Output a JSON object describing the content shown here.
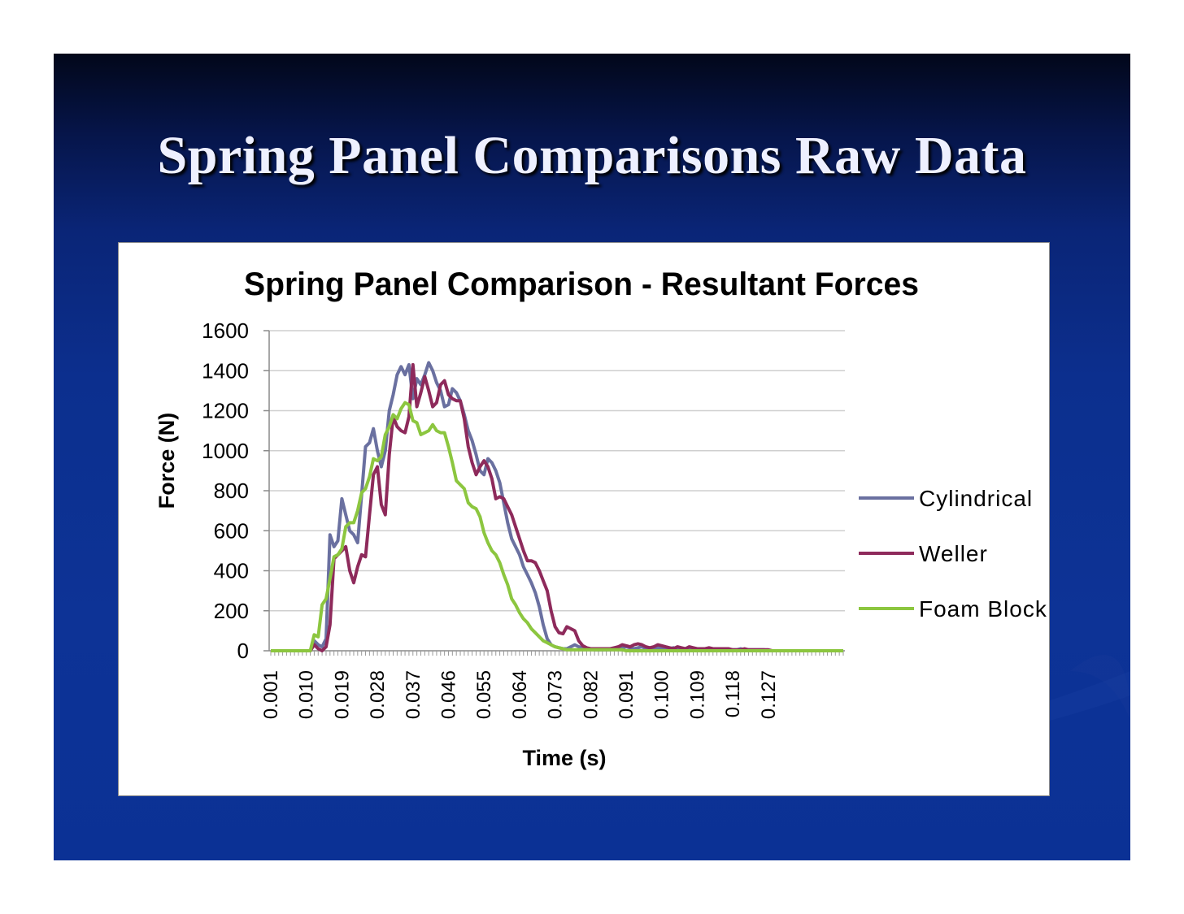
{
  "slide": {
    "title": "Spring Panel Comparisons Raw Data",
    "colors": {
      "background_top": "#02071a",
      "background": "#0c2f8e",
      "title_text": "#eef0ff"
    }
  },
  "chart_data": {
    "type": "line",
    "title": "Spring Panel Comparison - Resultant Forces",
    "xlabel": "Time (s)",
    "ylabel": "Force (N)",
    "ylim": [
      0,
      1600
    ],
    "yticks": [
      "0",
      "200",
      "400",
      "600",
      "800",
      "1000",
      "1200",
      "1400",
      "1600"
    ],
    "xticks": [
      "0.001",
      "0.010",
      "0.019",
      "0.028",
      "0.037",
      "0.046",
      "0.055",
      "0.064",
      "0.073",
      "0.082",
      "0.091",
      "0.100",
      "0.109",
      "0.118",
      "0.127"
    ],
    "x_start": 0.001,
    "x_step": 0.001,
    "grid": "horizontal",
    "legend_position": "right",
    "series": [
      {
        "name": "Cylindrical",
        "color": "#6a70a0",
        "values": [
          0,
          0,
          0,
          0,
          0,
          0,
          0,
          0,
          0,
          0,
          0,
          50,
          30,
          20,
          60,
          580,
          520,
          550,
          760,
          680,
          600,
          580,
          540,
          780,
          1020,
          1040,
          1110,
          1000,
          920,
          1000,
          1200,
          1280,
          1380,
          1420,
          1380,
          1430,
          1260,
          1360,
          1330,
          1380,
          1440,
          1400,
          1340,
          1300,
          1220,
          1230,
          1310,
          1290,
          1250,
          1180,
          1100,
          1050,
          980,
          900,
          880,
          960,
          940,
          900,
          840,
          740,
          640,
          560,
          520,
          480,
          420,
          380,
          340,
          290,
          220,
          130,
          60,
          30,
          20,
          15,
          10,
          10,
          20,
          30,
          20,
          15,
          10,
          10,
          5,
          5,
          5,
          5,
          5,
          10,
          10,
          15,
          20,
          15,
          10,
          15,
          20,
          10,
          10,
          10,
          15,
          10,
          10,
          10,
          15,
          10,
          10,
          10,
          10,
          5,
          5,
          5,
          5,
          5,
          5,
          5,
          5,
          5,
          5,
          5,
          5,
          10,
          5,
          5,
          5,
          5,
          5,
          5,
          0,
          0,
          0,
          0,
          0,
          0,
          0,
          0,
          0,
          0,
          0,
          0,
          0
        ]
      },
      {
        "name": "Weller",
        "color": "#8e2a5b",
        "values": [
          0,
          0,
          0,
          0,
          0,
          0,
          0,
          0,
          0,
          0,
          0,
          30,
          10,
          0,
          20,
          130,
          460,
          480,
          500,
          520,
          400,
          340,
          420,
          480,
          470,
          680,
          880,
          920,
          730,
          680,
          980,
          1170,
          1120,
          1100,
          1090,
          1170,
          1430,
          1220,
          1290,
          1370,
          1300,
          1220,
          1240,
          1330,
          1350,
          1280,
          1260,
          1250,
          1250,
          1160,
          1020,
          940,
          880,
          920,
          950,
          920,
          860,
          760,
          770,
          760,
          720,
          680,
          620,
          560,
          500,
          450,
          450,
          440,
          400,
          350,
          300,
          200,
          120,
          90,
          85,
          120,
          110,
          100,
          50,
          25,
          15,
          10,
          10,
          10,
          10,
          10,
          10,
          15,
          20,
          30,
          25,
          20,
          30,
          35,
          30,
          20,
          15,
          20,
          30,
          25,
          20,
          15,
          10,
          20,
          15,
          10,
          20,
          15,
          10,
          10,
          10,
          15,
          10,
          10,
          10,
          10,
          10,
          5,
          5,
          5,
          10,
          5,
          5,
          5,
          5,
          5,
          5,
          0,
          0,
          0,
          0,
          0,
          0,
          0,
          0,
          0,
          0,
          0,
          0,
          0
        ]
      },
      {
        "name": "Foam Block",
        "color": "#8cc63f",
        "values": [
          0,
          0,
          0,
          0,
          0,
          0,
          0,
          0,
          0,
          0,
          0,
          80,
          70,
          230,
          260,
          360,
          470,
          480,
          510,
          620,
          640,
          640,
          700,
          790,
          810,
          870,
          960,
          950,
          970,
          1080,
          1120,
          1180,
          1160,
          1210,
          1240,
          1230,
          1150,
          1140,
          1080,
          1090,
          1100,
          1130,
          1100,
          1090,
          1090,
          1020,
          940,
          850,
          830,
          810,
          740,
          720,
          710,
          670,
          590,
          540,
          500,
          480,
          440,
          380,
          330,
          260,
          230,
          190,
          160,
          140,
          110,
          90,
          70,
          50,
          40,
          30,
          20,
          15,
          10,
          5,
          5,
          5,
          5,
          5,
          5,
          5,
          5,
          5,
          5,
          5,
          5,
          5,
          5,
          5,
          0,
          0,
          0,
          0,
          0,
          0,
          0,
          0,
          0,
          0,
          0,
          0,
          0,
          0,
          0,
          0,
          0,
          0,
          0,
          0,
          0,
          0,
          0,
          0,
          0,
          0,
          0,
          0,
          0,
          0,
          0,
          0,
          0,
          0,
          0,
          0,
          0,
          0,
          0,
          0,
          0,
          0,
          0,
          0,
          0,
          0,
          0,
          0,
          0,
          0,
          0,
          0,
          0,
          0,
          0,
          0
        ]
      }
    ]
  }
}
